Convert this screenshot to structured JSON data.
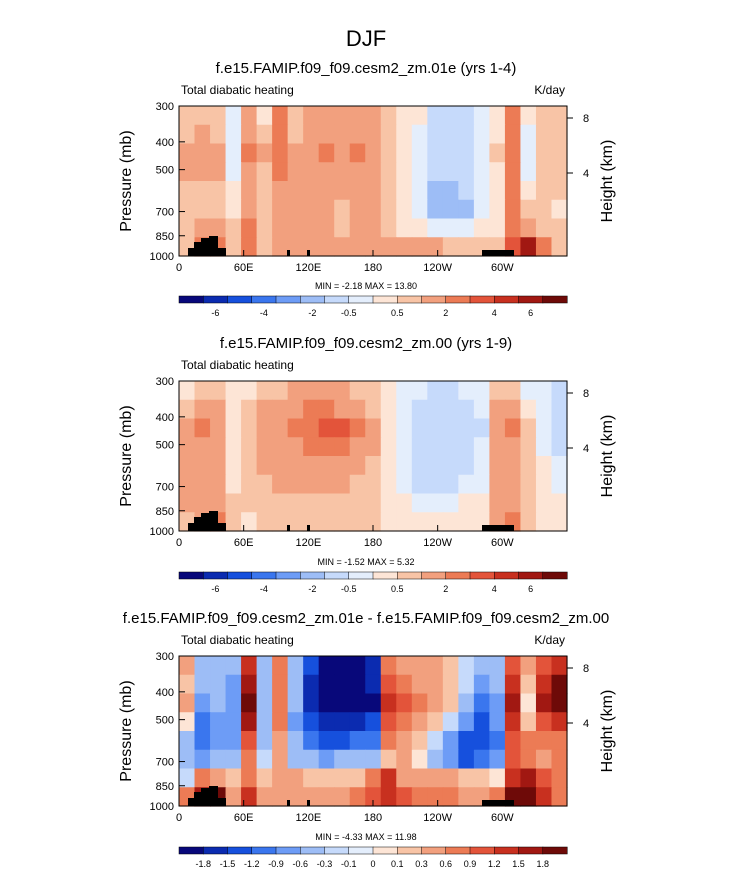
{
  "figure_title": "DJF",
  "chart_data": [
    {
      "type": "heatmap",
      "title": "f.e15.FAMIP.f09_f09.cesm2_zm.01e (yrs 1-4)",
      "left_label": "Total diabatic heating",
      "units": "K/day",
      "ylabel": "Pressure (mb)",
      "right_ylabel": "Height (km)",
      "xticks": [
        "0",
        "60E",
        "120E",
        "180",
        "120W",
        "60W"
      ],
      "yticks": [
        "300",
        "400",
        "500",
        "700",
        "850",
        "1000"
      ],
      "right_ticks": [
        "8",
        "4"
      ],
      "stats": "MIN =  -2.18  MAX =  13.80",
      "colorbar_labels": [
        "-6",
        "-4",
        "-2",
        "-0.5",
        "0.5",
        "2",
        "4",
        "6"
      ],
      "colorbar_colors": [
        "#08087a",
        "#0b2bb0",
        "#1650dd",
        "#3a76ee",
        "#6d9cf6",
        "#9dbdf6",
        "#c6dafb",
        "#e4eefc",
        "#fde5d6",
        "#f8c4a6",
        "#f2a07e",
        "#ec7b55",
        "#e3543a",
        "#c8301f",
        "#a11812",
        "#6e0a08"
      ],
      "grid": [
        [
          0.6,
          0.5,
          0.6,
          -0.3,
          1.4,
          0.3,
          2.0,
          0.8,
          1.4,
          1.3,
          1.0,
          1.2,
          1.1,
          0.5,
          0.1,
          0.0,
          -0.6,
          -0.7,
          -0.6,
          -0.2,
          0.3,
          2.2,
          0.3,
          0.6,
          0.6
        ],
        [
          0.8,
          1.2,
          0.8,
          -0.4,
          1.8,
          0.6,
          2.2,
          0.9,
          1.5,
          1.7,
          1.3,
          1.7,
          1.2,
          0.6,
          0.1,
          -0.2,
          -0.8,
          -0.8,
          -0.7,
          -0.2,
          0.4,
          2.4,
          -0.4,
          0.7,
          0.6
        ],
        [
          1.5,
          1.6,
          1.2,
          -0.2,
          2.2,
          1.0,
          2.4,
          1.2,
          1.8,
          2.0,
          1.5,
          2.0,
          1.4,
          0.7,
          0.1,
          -0.3,
          -1.0,
          -1.0,
          -0.8,
          -0.1,
          0.5,
          2.6,
          -0.5,
          0.9,
          0.8
        ],
        [
          1.2,
          1.3,
          1.0,
          -0.1,
          1.9,
          0.8,
          2.0,
          1.1,
          1.5,
          1.7,
          1.3,
          1.6,
          1.2,
          0.6,
          0.1,
          -0.2,
          -0.9,
          -1.0,
          -0.7,
          -0.1,
          0.4,
          2.4,
          -0.2,
          0.8,
          0.7
        ],
        [
          0.9,
          0.8,
          0.7,
          0.2,
          1.7,
          0.6,
          1.5,
          1.0,
          1.4,
          1.3,
          1.0,
          1.2,
          1.0,
          0.5,
          0.0,
          -0.3,
          -1.2,
          -1.4,
          -1.0,
          -0.2,
          0.2,
          2.2,
          0.3,
          0.6,
          0.5
        ],
        [
          0.8,
          0.7,
          0.8,
          0.4,
          1.8,
          0.6,
          1.4,
          1.1,
          1.3,
          1.2,
          0.9,
          1.1,
          1.0,
          0.5,
          0.0,
          -0.5,
          -1.6,
          -1.8,
          -1.2,
          -0.3,
          0.1,
          2.2,
          0.5,
          0.5,
          0.4
        ],
        [
          0.8,
          1.0,
          1.0,
          0.5,
          2.0,
          0.7,
          1.3,
          1.2,
          1.3,
          1.1,
          0.9,
          1.0,
          1.0,
          0.6,
          0.2,
          0.0,
          -0.3,
          -0.5,
          -0.2,
          0.1,
          0.3,
          2.5,
          1.0,
          0.6,
          0.5
        ],
        [
          0.9,
          2.2,
          2.6,
          0.5,
          2.0,
          0.7,
          1.4,
          1.5,
          1.4,
          1.4,
          1.2,
          1.5,
          1.5,
          1.2,
          1.2,
          1.0,
          1.0,
          0.8,
          0.6,
          0.5,
          0.7,
          3.5,
          5.0,
          2.0,
          0.8
        ]
      ]
    },
    {
      "type": "heatmap",
      "title": "f.e15.FAMIP.f09_f09.cesm2_zm.00 (yrs 1-9)",
      "left_label": "Total diabatic heating",
      "units": "",
      "ylabel": "Pressure (mb)",
      "right_ylabel": "Height (km)",
      "xticks": [
        "0",
        "60E",
        "120E",
        "180",
        "120W",
        "60W"
      ],
      "yticks": [
        "300",
        "400",
        "500",
        "700",
        "850",
        "1000"
      ],
      "right_ticks": [
        "8",
        "4"
      ],
      "stats": "MIN =  -1.52  MAX =   5.32",
      "colorbar_labels": [
        "-6",
        "-4",
        "-2",
        "-0.5",
        "0.5",
        "2",
        "4",
        "6"
      ],
      "colorbar_colors": [
        "#08087a",
        "#0b2bb0",
        "#1650dd",
        "#3a76ee",
        "#6d9cf6",
        "#9dbdf6",
        "#c6dafb",
        "#e4eefc",
        "#fde5d6",
        "#f8c4a6",
        "#f2a07e",
        "#ec7b55",
        "#e3543a",
        "#c8301f",
        "#a11812",
        "#6e0a08"
      ],
      "grid": [
        [
          0.4,
          0.9,
          0.8,
          0.1,
          0.4,
          0.8,
          0.9,
          1.0,
          1.2,
          1.2,
          1.1,
          0.9,
          0.5,
          0.1,
          -0.2,
          -0.5,
          -0.6,
          -0.6,
          -0.5,
          -0.4,
          0.6,
          0.7,
          -0.1,
          -0.2,
          -0.6
        ],
        [
          0.8,
          1.4,
          1.2,
          0.3,
          0.6,
          1.3,
          1.5,
          1.7,
          2.0,
          2.1,
          1.9,
          1.5,
          0.9,
          0.3,
          -0.3,
          -0.6,
          -0.8,
          -0.8,
          -0.7,
          -0.5,
          1.3,
          1.6,
          0.4,
          -0.2,
          -0.9
        ],
        [
          1.2,
          2.0,
          1.6,
          0.4,
          0.8,
          1.6,
          1.8,
          2.2,
          2.6,
          3.0,
          3.2,
          2.2,
          1.2,
          0.4,
          -0.3,
          -0.7,
          -1.0,
          -1.0,
          -0.8,
          -0.6,
          1.8,
          2.2,
          0.8,
          -0.1,
          -0.9
        ],
        [
          1.1,
          1.8,
          1.4,
          0.4,
          0.7,
          1.3,
          1.5,
          1.8,
          2.0,
          2.2,
          2.0,
          1.6,
          1.0,
          0.3,
          -0.3,
          -0.6,
          -0.8,
          -0.8,
          -0.7,
          -0.5,
          1.5,
          1.8,
          0.7,
          -0.1,
          -0.7
        ],
        [
          1.0,
          1.5,
          1.2,
          0.4,
          0.6,
          1.0,
          1.2,
          1.3,
          1.4,
          1.5,
          1.4,
          1.2,
          0.8,
          0.2,
          -0.5,
          -0.8,
          -1.0,
          -0.9,
          -0.7,
          -0.4,
          1.2,
          1.5,
          0.6,
          0.0,
          -0.4
        ],
        [
          1.0,
          1.4,
          1.2,
          0.4,
          0.5,
          0.8,
          1.0,
          1.0,
          1.0,
          1.0,
          1.0,
          0.9,
          0.6,
          0.2,
          -0.4,
          -0.7,
          -0.8,
          -0.7,
          -0.5,
          -0.3,
          1.1,
          1.4,
          0.6,
          0.1,
          -0.2
        ],
        [
          1.0,
          1.6,
          1.6,
          0.5,
          0.5,
          0.7,
          0.8,
          0.8,
          0.8,
          0.8,
          0.8,
          0.7,
          0.5,
          0.2,
          0.0,
          -0.1,
          -0.2,
          -0.1,
          0.0,
          0.1,
          1.3,
          1.6,
          0.7,
          0.2,
          0.1
        ],
        [
          0.8,
          1.5,
          2.0,
          0.6,
          0.4,
          0.5,
          0.6,
          0.7,
          0.6,
          0.6,
          0.6,
          0.6,
          0.5,
          0.3,
          0.1,
          0.1,
          0.2,
          0.2,
          0.2,
          0.2,
          1.6,
          2.0,
          0.8,
          0.3,
          0.2
        ]
      ]
    },
    {
      "type": "heatmap",
      "title": "f.e15.FAMIP.f09_f09.cesm2_zm.01e - f.e15.FAMIP.f09_f09.cesm2_zm.00",
      "left_label": "Total diabatic heating",
      "units": "K/day",
      "ylabel": "Pressure (mb)",
      "right_ylabel": "Height (km)",
      "xticks": [
        "0",
        "60E",
        "120E",
        "180",
        "120W",
        "60W"
      ],
      "yticks": [
        "300",
        "400",
        "500",
        "700",
        "850",
        "1000"
      ],
      "right_ticks": [
        "8",
        "4"
      ],
      "stats": "MIN =  -4.33  MAX =  11.98",
      "colorbar_labels": [
        "-1.8",
        "-1.5",
        "-1.2",
        "-0.9",
        "-0.6",
        "-0.3",
        "-0.1",
        "0",
        "0.1",
        "0.3",
        "0.6",
        "0.9",
        "1.2",
        "1.5",
        "1.8"
      ],
      "colorbar_colors": [
        "#08087a",
        "#0b2bb0",
        "#1650dd",
        "#3a76ee",
        "#6d9cf6",
        "#9dbdf6",
        "#c6dafb",
        "#e4eefc",
        "#fde5d6",
        "#f8c4a6",
        "#f2a07e",
        "#ec7b55",
        "#e3543a",
        "#c8301f",
        "#a11812",
        "#6e0a08"
      ],
      "grid": [
        [
          0.3,
          -0.5,
          -0.4,
          -0.6,
          1.2,
          -0.5,
          0.8,
          -0.4,
          -1.4,
          -1.9,
          -2.0,
          -1.9,
          -1.6,
          0.8,
          0.5,
          0.4,
          0.3,
          0.2,
          -0.2,
          -0.6,
          -0.4,
          1.0,
          0.4,
          1.0,
          1.4
        ],
        [
          0.1,
          -0.6,
          -0.5,
          -0.7,
          1.5,
          -0.6,
          0.7,
          -0.5,
          -1.6,
          -2.0,
          -2.0,
          -2.0,
          -1.8,
          1.1,
          0.7,
          0.5,
          0.3,
          0.1,
          -0.3,
          -0.8,
          -0.6,
          1.4,
          0.2,
          1.3,
          1.8
        ],
        [
          0.4,
          -0.8,
          -0.6,
          -0.8,
          1.8,
          -0.6,
          0.7,
          -0.6,
          -1.7,
          -2.0,
          -2.0,
          -2.0,
          -1.9,
          1.4,
          0.9,
          0.6,
          0.3,
          0.1,
          -0.4,
          -1.0,
          -0.8,
          1.6,
          0.0,
          1.5,
          2.0
        ],
        [
          0.0,
          -1.0,
          -0.8,
          -0.9,
          1.5,
          -0.6,
          0.6,
          -0.7,
          -1.5,
          -1.8,
          -1.7,
          -1.6,
          -1.4,
          1.0,
          0.7,
          0.4,
          0.1,
          -0.3,
          -0.8,
          -1.3,
          -0.9,
          1.4,
          0.2,
          1.0,
          1.3
        ],
        [
          -0.6,
          -1.2,
          -0.8,
          -0.8,
          1.0,
          -0.5,
          0.5,
          -0.6,
          -1.2,
          -1.3,
          -1.3,
          -1.2,
          -1.0,
          0.6,
          0.5,
          0.2,
          -0.3,
          -0.8,
          -1.3,
          -1.5,
          -1.0,
          1.0,
          0.6,
          0.6,
          0.8
        ],
        [
          -0.5,
          -0.9,
          -0.6,
          -0.5,
          0.7,
          -0.3,
          0.4,
          -0.4,
          -0.6,
          -0.7,
          -0.6,
          -0.6,
          -0.5,
          0.2,
          0.3,
          0.0,
          -0.4,
          -0.9,
          -1.3,
          -1.2,
          -0.7,
          1.0,
          0.8,
          0.5,
          0.6
        ],
        [
          -0.3,
          0.6,
          0.4,
          0.2,
          0.8,
          0.2,
          0.4,
          0.3,
          0.2,
          0.1,
          0.1,
          0.2,
          0.8,
          1.3,
          0.5,
          0.3,
          0.4,
          0.3,
          0.2,
          0.1,
          0.0,
          1.3,
          1.6,
          0.9,
          0.6
        ],
        [
          0.6,
          1.5,
          1.8,
          0.5,
          1.2,
          0.4,
          0.5,
          0.5,
          0.5,
          0.5,
          0.5,
          0.8,
          1.0,
          1.2,
          0.9,
          0.8,
          0.8,
          0.6,
          0.5,
          0.4,
          0.7,
          1.8,
          2.0,
          1.2,
          0.6
        ]
      ]
    }
  ]
}
